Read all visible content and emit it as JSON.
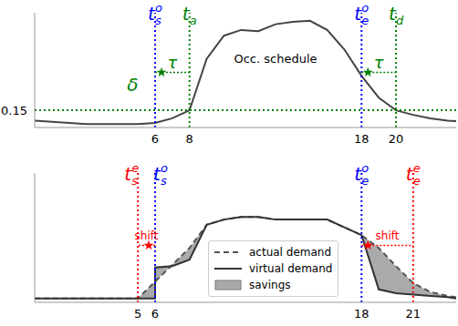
{
  "chart_data": [
    {
      "type": "line",
      "xlim": [
        -1,
        23.5
      ],
      "xticks": [
        6,
        8,
        18,
        20
      ],
      "ylim": [
        0,
        1
      ],
      "yticks": [
        0.15
      ],
      "x": [
        -1,
        0,
        1,
        2,
        3,
        4,
        5,
        6,
        7,
        8,
        9,
        10,
        11,
        12,
        13,
        14,
        15,
        16,
        17,
        18,
        19,
        20,
        21,
        22,
        23,
        23.5
      ],
      "series": [
        {
          "color": "#444444",
          "line_style": "solid",
          "values": [
            0.06,
            0.05,
            0.04,
            0.03,
            0.03,
            0.03,
            0.03,
            0.04,
            0.08,
            0.15,
            0.6,
            0.8,
            0.85,
            0.84,
            0.9,
            0.92,
            0.93,
            0.85,
            0.68,
            0.45,
            0.26,
            0.15,
            0.11,
            0.08,
            0.06,
            0.055
          ]
        }
      ],
      "reference_lines": [
        {
          "axis": "x",
          "value": 6,
          "color": "#0000ff",
          "line_style": "dotted",
          "label": {
            "text": "t",
            "sub": "s",
            "sup": "o"
          }
        },
        {
          "axis": "x",
          "value": 8,
          "color": "#008000",
          "line_style": "dotted",
          "label": {
            "text": "t",
            "sub": "a"
          }
        },
        {
          "axis": "x",
          "value": 18,
          "color": "#0000ff",
          "line_style": "dotted",
          "label": {
            "text": "t",
            "sub": "e",
            "sup": "o"
          }
        },
        {
          "axis": "x",
          "value": 20,
          "color": "#008000",
          "line_style": "dotted",
          "label": {
            "text": "t",
            "sub": "d"
          }
        },
        {
          "axis": "y",
          "value": 0.15,
          "color": "#008000",
          "line_style": "dotted"
        }
      ],
      "annotations": [
        {
          "text": "Occ. schedule",
          "x": 13,
          "y": 0.6,
          "color": "#000000"
        },
        {
          "text": "δ",
          "x": 4.7,
          "y": 0.37,
          "color": "#008000"
        },
        {
          "text": "τ",
          "from": 6,
          "to": 8,
          "y": 0.48,
          "color": "#008000"
        },
        {
          "text": "τ",
          "from": 18,
          "to": 20,
          "y": 0.48,
          "color": "#008000"
        }
      ]
    },
    {
      "type": "line",
      "xlim": [
        -1,
        23.5
      ],
      "xticks": [
        5,
        6,
        18,
        21
      ],
      "ylim": [
        0,
        1
      ],
      "yticks": [],
      "tick_labels": "x",
      "legend": "lower center",
      "x": [
        -1,
        0,
        1,
        2,
        3,
        4,
        5,
        6,
        6,
        7,
        8,
        9,
        10,
        11,
        12,
        13,
        14,
        15,
        16,
        17,
        18,
        19,
        20,
        21,
        22,
        23,
        23.5
      ],
      "series": [
        {
          "name": "actual demand",
          "color": "#555555",
          "line_style": "dashed",
          "values": [
            0.03,
            0.03,
            0.03,
            0.03,
            0.03,
            0.03,
            0.03,
            0.16,
            0.16,
            0.29,
            0.42,
            0.6,
            0.64,
            0.66,
            0.66,
            0.64,
            0.64,
            0.64,
            0.64,
            0.58,
            0.52,
            0.42,
            0.28,
            0.15,
            0.08,
            0.05,
            0.04
          ]
        },
        {
          "name": "virtual demand",
          "color": "#333333",
          "line_style": "solid",
          "values": [
            0.03,
            0.03,
            0.03,
            0.03,
            0.03,
            0.03,
            0.03,
            0.03,
            0.27,
            0.28,
            0.33,
            0.6,
            0.64,
            0.66,
            0.66,
            0.64,
            0.64,
            0.64,
            0.64,
            0.58,
            0.52,
            0.1,
            0.07,
            0.06,
            0.05,
            0.04,
            0.03
          ]
        },
        {
          "name": "savings",
          "type": "area",
          "color": "#aaaaaa",
          "between": [
            "virtual demand",
            "actual demand"
          ]
        }
      ],
      "reference_lines": [
        {
          "axis": "x",
          "value": 5,
          "color": "#ff0000",
          "line_style": "dotted",
          "label": {
            "text": "t",
            "sub": "s",
            "sup": "e"
          }
        },
        {
          "axis": "x",
          "value": 6,
          "color": "#0000ff",
          "line_style": "dotted",
          "label": {
            "text": "t",
            "sub": "s",
            "sup": "o"
          }
        },
        {
          "axis": "x",
          "value": 18,
          "color": "#0000ff",
          "line_style": "dotted",
          "label": {
            "text": "t",
            "sub": "e",
            "sup": "o"
          }
        },
        {
          "axis": "x",
          "value": 21,
          "color": "#ff0000",
          "line_style": "dotted",
          "label": {
            "text": "t",
            "sub": "e",
            "sup": "e"
          }
        }
      ],
      "annotations": [
        {
          "text": "shift",
          "from": 6,
          "to": 5,
          "y": 0.44,
          "color": "#ff0000"
        },
        {
          "text": "shift",
          "from": 18,
          "to": 21,
          "y": 0.44,
          "color": "#ff0000"
        }
      ]
    }
  ]
}
